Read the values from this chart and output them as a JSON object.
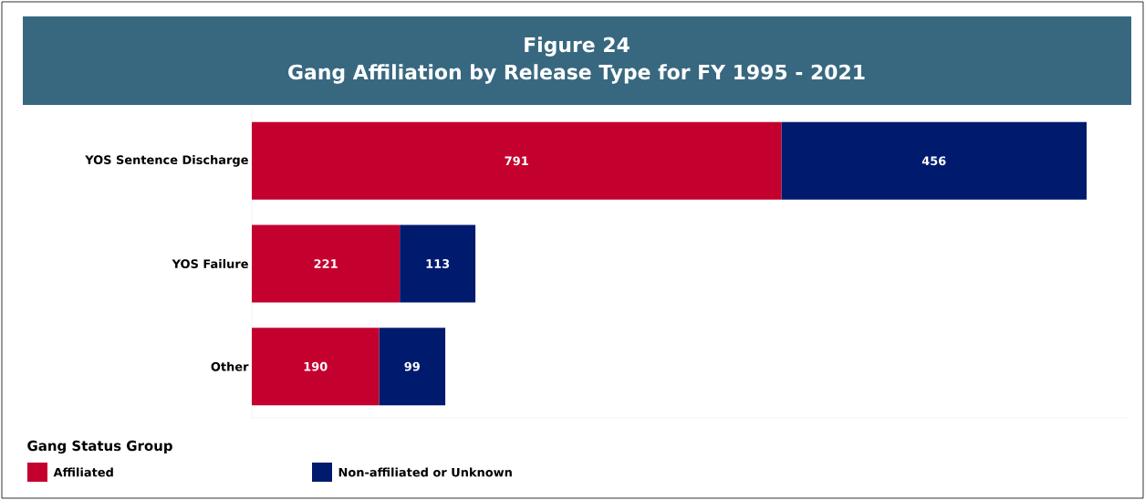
{
  "chart_data": {
    "type": "bar",
    "orientation": "horizontal",
    "stacked": true,
    "title": "Figure 24\nGang Affiliation by Release Type for FY 1995 - 2021",
    "categories": [
      "YOS Sentence Discharge",
      "YOS Failure",
      "Other"
    ],
    "series": [
      {
        "name": "Affiliated",
        "color": "#c4002f",
        "values": [
          791,
          221,
          190
        ]
      },
      {
        "name": "Non-affiliated or Unknown",
        "color": "#001a6e",
        "values": [
          456,
          113,
          99
        ]
      }
    ],
    "data_labels": true,
    "legend": "bottom left",
    "legend_title": "Gang Status Group",
    "grid": false
  }
}
